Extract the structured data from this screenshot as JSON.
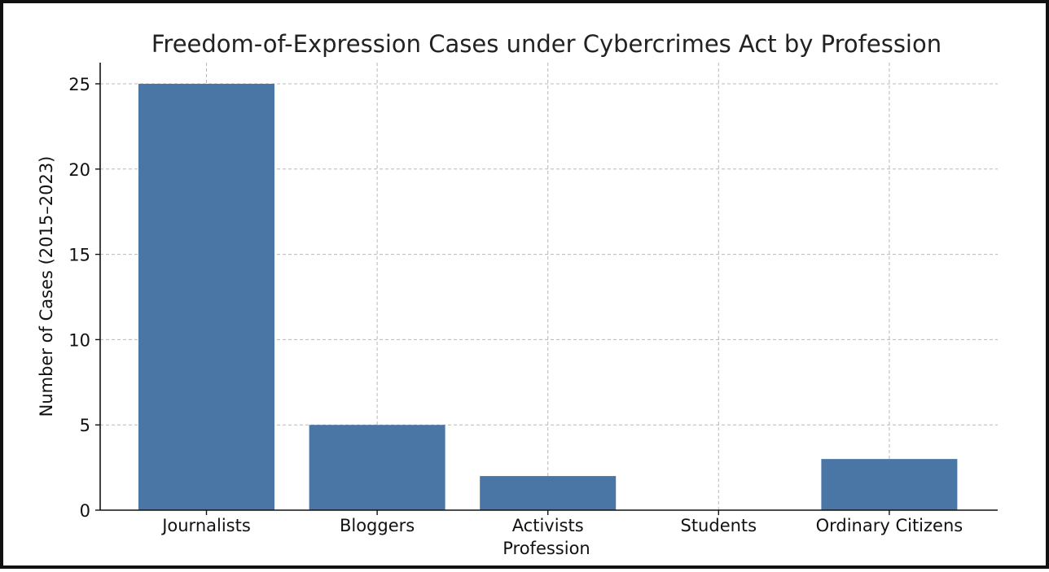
{
  "chart_data": {
    "type": "bar",
    "title": "Freedom-of-Expression Cases under Cybercrimes Act by Profession",
    "xlabel": "Profession",
    "ylabel": "Number of Cases (2015–2023)",
    "categories": [
      "Journalists",
      "Bloggers",
      "Activists",
      "Students",
      "Ordinary Citizens"
    ],
    "values": [
      25,
      5,
      2,
      0,
      3
    ],
    "ylim": [
      0,
      26
    ],
    "yticks": [
      "0",
      "5",
      "10",
      "15",
      "20",
      "25"
    ],
    "grid": true,
    "bar_color": "#4a76a5"
  }
}
